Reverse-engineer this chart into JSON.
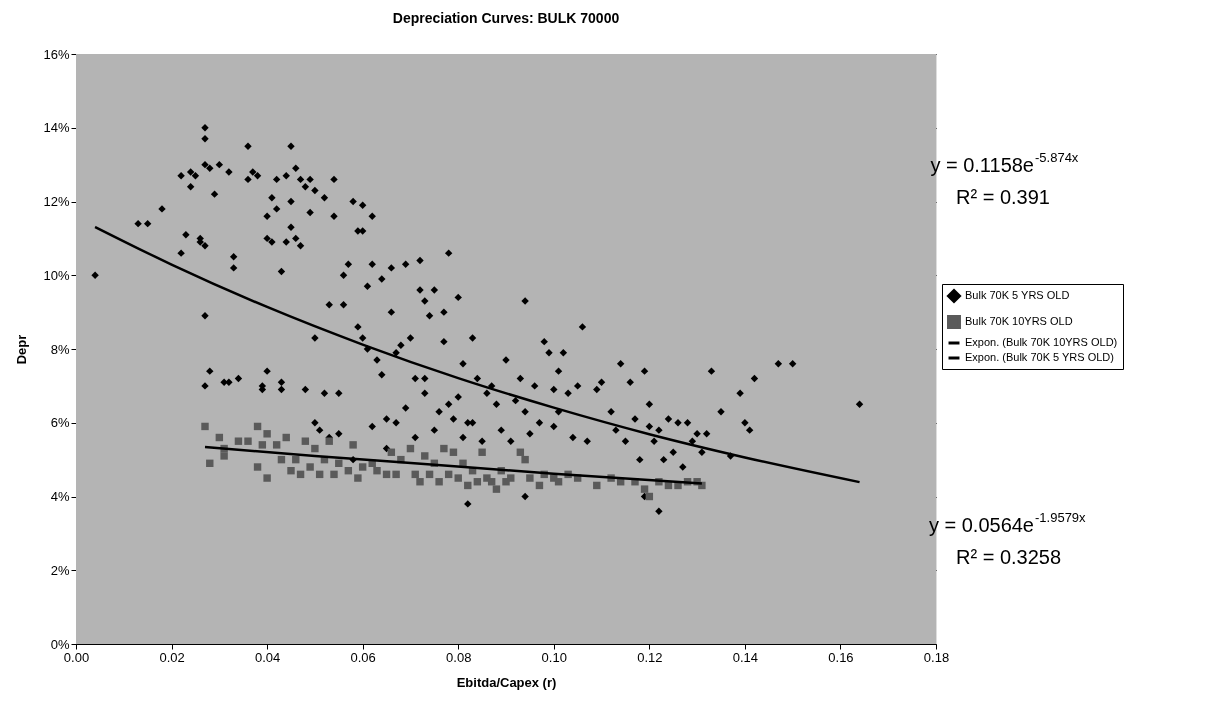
{
  "chart_data": {
    "type": "scatter",
    "title": "Depreciation Curves: BULK 70000",
    "xlabel": "Ebitda/Capex (r)",
    "ylabel": "Depr",
    "xlim": [
      0,
      0.18
    ],
    "ylim": [
      0,
      16
    ],
    "xticks": [
      {
        "value": 0,
        "label": "0.00"
      },
      {
        "value": 0.02,
        "label": "0.02"
      },
      {
        "value": 0.04,
        "label": "0.04"
      },
      {
        "value": 0.06,
        "label": "0.06"
      },
      {
        "value": 0.08,
        "label": "0.08"
      },
      {
        "value": 0.1,
        "label": "0.10"
      },
      {
        "value": 0.12,
        "label": "0.12"
      },
      {
        "value": 0.14,
        "label": "0.14"
      },
      {
        "value": 0.16,
        "label": "0.16"
      },
      {
        "value": 0.18,
        "label": "0.18"
      }
    ],
    "yticks": [
      {
        "value": 0,
        "label": "0%"
      },
      {
        "value": 2,
        "label": "2%"
      },
      {
        "value": 4,
        "label": "4%"
      },
      {
        "value": 6,
        "label": "6%"
      },
      {
        "value": 8,
        "label": "8%"
      },
      {
        "value": 10,
        "label": "10%"
      },
      {
        "value": 12,
        "label": "12%"
      },
      {
        "value": 14,
        "label": "14%"
      },
      {
        "value": 16,
        "label": "16%"
      }
    ],
    "grid": "y",
    "legend": "right",
    "annotations": [
      "y = 0.1158e$^{-5.874x}$",
      "R² = 0.391",
      "y = 0.0564e$^{-1.9579x}$",
      "R² = 0.3258"
    ],
    "series": [
      {
        "name": "Bulk 70K 5 YRS OLD",
        "marker": "diamond",
        "color": "#000000",
        "x": [
          0.004,
          0.013,
          0.015,
          0.018,
          0.022,
          0.022,
          0.023,
          0.024,
          0.024,
          0.025,
          0.026,
          0.026,
          0.027,
          0.027,
          0.027,
          0.027,
          0.027,
          0.027,
          0.028,
          0.028,
          0.029,
          0.03,
          0.031,
          0.032,
          0.032,
          0.033,
          0.033,
          0.034,
          0.036,
          0.036,
          0.037,
          0.038,
          0.039,
          0.039,
          0.04,
          0.04,
          0.04,
          0.041,
          0.041,
          0.042,
          0.042,
          0.043,
          0.043,
          0.043,
          0.044,
          0.044,
          0.045,
          0.045,
          0.045,
          0.046,
          0.046,
          0.047,
          0.047,
          0.048,
          0.048,
          0.049,
          0.049,
          0.05,
          0.05,
          0.05,
          0.051,
          0.052,
          0.052,
          0.053,
          0.053,
          0.054,
          0.054,
          0.055,
          0.055,
          0.056,
          0.056,
          0.057,
          0.058,
          0.058,
          0.059,
          0.059,
          0.06,
          0.06,
          0.06,
          0.061,
          0.061,
          0.062,
          0.062,
          0.062,
          0.063,
          0.064,
          0.064,
          0.065,
          0.065,
          0.066,
          0.066,
          0.067,
          0.067,
          0.068,
          0.069,
          0.069,
          0.07,
          0.071,
          0.071,
          0.072,
          0.072,
          0.073,
          0.073,
          0.073,
          0.074,
          0.075,
          0.075,
          0.076,
          0.077,
          0.077,
          0.078,
          0.078,
          0.079,
          0.08,
          0.08,
          0.081,
          0.081,
          0.082,
          0.082,
          0.083,
          0.083,
          0.084,
          0.085,
          0.086,
          0.087,
          0.088,
          0.089,
          0.09,
          0.091,
          0.092,
          0.093,
          0.094,
          0.094,
          0.094,
          0.095,
          0.096,
          0.097,
          0.098,
          0.099,
          0.1,
          0.1,
          0.101,
          0.101,
          0.102,
          0.103,
          0.104,
          0.105,
          0.106,
          0.107,
          0.109,
          0.11,
          0.112,
          0.113,
          0.114,
          0.115,
          0.116,
          0.117,
          0.118,
          0.119,
          0.119,
          0.12,
          0.12,
          0.121,
          0.122,
          0.122,
          0.123,
          0.124,
          0.125,
          0.126,
          0.127,
          0.128,
          0.129,
          0.13,
          0.131,
          0.132,
          0.133,
          0.135,
          0.137,
          0.139,
          0.14,
          0.141,
          0.142,
          0.147,
          0.15,
          0.164
        ],
        "values": [
          10.0,
          11.4,
          11.4,
          11.8,
          12.7,
          10.6,
          11.1,
          12.4,
          12.8,
          12.7,
          11.0,
          10.9,
          13.7,
          14.0,
          13.0,
          10.8,
          8.9,
          7.0,
          7.4,
          12.9,
          12.2,
          13.0,
          7.1,
          12.8,
          7.1,
          10.5,
          10.2,
          7.2,
          13.5,
          12.6,
          12.8,
          12.7,
          7.0,
          6.9,
          7.4,
          11.0,
          11.6,
          12.1,
          10.9,
          12.6,
          11.8,
          10.1,
          6.9,
          7.1,
          12.7,
          10.9,
          13.5,
          12.0,
          11.3,
          12.9,
          11.0,
          12.6,
          10.8,
          12.4,
          6.9,
          12.6,
          11.7,
          12.3,
          6.0,
          8.3,
          5.8,
          12.1,
          6.8,
          9.2,
          5.6,
          12.6,
          11.6,
          5.7,
          6.8,
          10.0,
          9.2,
          10.3,
          12.0,
          5.0,
          11.2,
          8.6,
          11.9,
          11.2,
          8.3,
          9.7,
          8.0,
          10.3,
          11.6,
          5.9,
          7.7,
          9.9,
          7.3,
          5.3,
          6.1,
          9.0,
          10.2,
          7.9,
          6.0,
          8.1,
          10.3,
          6.4,
          8.3,
          7.2,
          5.6,
          10.4,
          9.6,
          9.3,
          7.2,
          6.8,
          8.9,
          9.6,
          5.8,
          6.3,
          8.2,
          9.0,
          10.6,
          6.5,
          6.1,
          9.4,
          6.7,
          7.6,
          5.6,
          6.0,
          3.8,
          8.3,
          6.0,
          7.2,
          5.5,
          6.8,
          7.0,
          6.5,
          5.8,
          7.7,
          5.5,
          6.6,
          7.2,
          9.3,
          6.3,
          4.0,
          5.7,
          7.0,
          6.0,
          8.2,
          7.9,
          6.9,
          5.9,
          7.4,
          6.3,
          7.9,
          6.8,
          5.6,
          7.0,
          8.6,
          5.5,
          6.9,
          7.1,
          6.3,
          5.8,
          7.6,
          5.5,
          7.1,
          6.1,
          5.0,
          7.4,
          4.0,
          5.9,
          6.5,
          5.5,
          3.6,
          5.8,
          5.0,
          6.1,
          5.2,
          6.0,
          4.8,
          6.0,
          5.5,
          5.7,
          5.2,
          5.7,
          7.4,
          6.3,
          5.1,
          6.8,
          6.0,
          5.8,
          7.2,
          7.6,
          7.6,
          6.5
        ]
      },
      {
        "name": "Bulk 70K 10YRS OLD",
        "marker": "square",
        "color": "#5a5a5a",
        "x": [
          0.027,
          0.028,
          0.03,
          0.031,
          0.031,
          0.034,
          0.036,
          0.038,
          0.038,
          0.039,
          0.04,
          0.04,
          0.042,
          0.043,
          0.044,
          0.045,
          0.046,
          0.047,
          0.048,
          0.049,
          0.05,
          0.051,
          0.052,
          0.053,
          0.054,
          0.055,
          0.057,
          0.058,
          0.059,
          0.06,
          0.062,
          0.063,
          0.065,
          0.066,
          0.067,
          0.068,
          0.07,
          0.071,
          0.072,
          0.073,
          0.074,
          0.075,
          0.076,
          0.077,
          0.078,
          0.079,
          0.08,
          0.081,
          0.082,
          0.083,
          0.084,
          0.085,
          0.086,
          0.087,
          0.088,
          0.089,
          0.09,
          0.091,
          0.093,
          0.094,
          0.095,
          0.097,
          0.098,
          0.1,
          0.101,
          0.103,
          0.105,
          0.109,
          0.112,
          0.114,
          0.117,
          0.119,
          0.12,
          0.122,
          0.124,
          0.126,
          0.128,
          0.13,
          0.131
        ],
        "values": [
          5.9,
          4.9,
          5.6,
          5.3,
          5.1,
          5.5,
          5.5,
          5.9,
          4.8,
          5.4,
          5.7,
          4.5,
          5.4,
          5.0,
          5.6,
          4.7,
          5.0,
          4.6,
          5.5,
          4.8,
          5.3,
          4.6,
          5.0,
          5.5,
          4.6,
          4.9,
          4.7,
          5.4,
          4.5,
          4.8,
          4.9,
          4.7,
          4.6,
          5.2,
          4.6,
          5.0,
          5.3,
          4.6,
          4.4,
          5.1,
          4.6,
          4.9,
          4.4,
          5.3,
          4.6,
          5.2,
          4.5,
          4.9,
          4.3,
          4.7,
          4.4,
          5.2,
          4.5,
          4.4,
          4.2,
          4.7,
          4.4,
          4.5,
          5.2,
          5.0,
          4.5,
          4.3,
          4.6,
          4.5,
          4.4,
          4.6,
          4.5,
          4.3,
          4.5,
          4.4,
          4.4,
          4.2,
          4.0,
          4.4,
          4.3,
          4.3,
          4.4,
          4.4,
          4.3
        ]
      },
      {
        "name": "Expon. (Bulk 70K 10YRS OLD)",
        "type": "line",
        "marker": "none",
        "color": "#000000",
        "x": [
          0.027,
          0.05,
          0.075,
          0.1,
          0.131
        ],
        "values": [
          5.34,
          5.1,
          4.86,
          4.62,
          4.35
        ]
      },
      {
        "name": "Expon. (Bulk 70K 5 YRS OLD)",
        "type": "line",
        "marker": "none",
        "color": "#000000",
        "x": [
          0.004,
          0.02,
          0.04,
          0.06,
          0.08,
          0.1,
          0.12,
          0.14,
          0.164
        ],
        "values": [
          11.31,
          10.29,
          9.14,
          8.12,
          7.21,
          6.41,
          5.69,
          5.06,
          4.39
        ]
      }
    ]
  }
}
